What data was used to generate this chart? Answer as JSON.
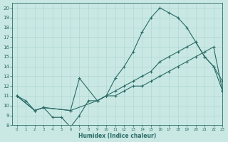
{
  "xlabel": "Humidex (Indice chaleur)",
  "xlim": [
    -0.5,
    23
  ],
  "ylim": [
    8,
    20.5
  ],
  "yticks": [
    8,
    9,
    10,
    11,
    12,
    13,
    14,
    15,
    16,
    17,
    18,
    19,
    20
  ],
  "xticks": [
    0,
    1,
    2,
    3,
    4,
    5,
    6,
    7,
    8,
    9,
    10,
    11,
    12,
    13,
    14,
    15,
    16,
    17,
    18,
    19,
    20,
    21,
    22,
    23
  ],
  "bg_color": "#c9e8e4",
  "line_color": "#2a6b65",
  "grid_color": "#b0d8d4",
  "line1_x": [
    0,
    1,
    2,
    3,
    4,
    5,
    6,
    7,
    8,
    9,
    10,
    11,
    12,
    13,
    14,
    15,
    16,
    17,
    18,
    19,
    20,
    21,
    22,
    23
  ],
  "line1_y": [
    11.0,
    10.5,
    9.5,
    9.8,
    8.8,
    8.8,
    7.8,
    9.0,
    10.5,
    10.5,
    11.0,
    12.8,
    14.0,
    15.5,
    17.5,
    19.0,
    20.0,
    19.5,
    19.0,
    18.0,
    16.5,
    15.0,
    14.0,
    12.5
  ],
  "line2_x": [
    0,
    2,
    3,
    6,
    7,
    9,
    10,
    11,
    12,
    13,
    14,
    15,
    16,
    17,
    18,
    19,
    20,
    21,
    22,
    23
  ],
  "line2_y": [
    11.0,
    9.5,
    9.8,
    9.5,
    12.8,
    10.5,
    11.0,
    11.5,
    12.0,
    12.5,
    13.0,
    13.5,
    14.5,
    15.0,
    15.5,
    16.0,
    16.5,
    15.0,
    14.0,
    11.5
  ],
  "line3_x": [
    0,
    2,
    3,
    6,
    9,
    10,
    11,
    12,
    13,
    14,
    15,
    16,
    17,
    18,
    19,
    20,
    21,
    22,
    23
  ],
  "line3_y": [
    11.0,
    9.5,
    9.8,
    9.5,
    10.5,
    11.0,
    11.0,
    11.5,
    12.0,
    12.0,
    12.5,
    13.0,
    13.5,
    14.0,
    14.5,
    15.0,
    15.5,
    16.0,
    11.5
  ]
}
